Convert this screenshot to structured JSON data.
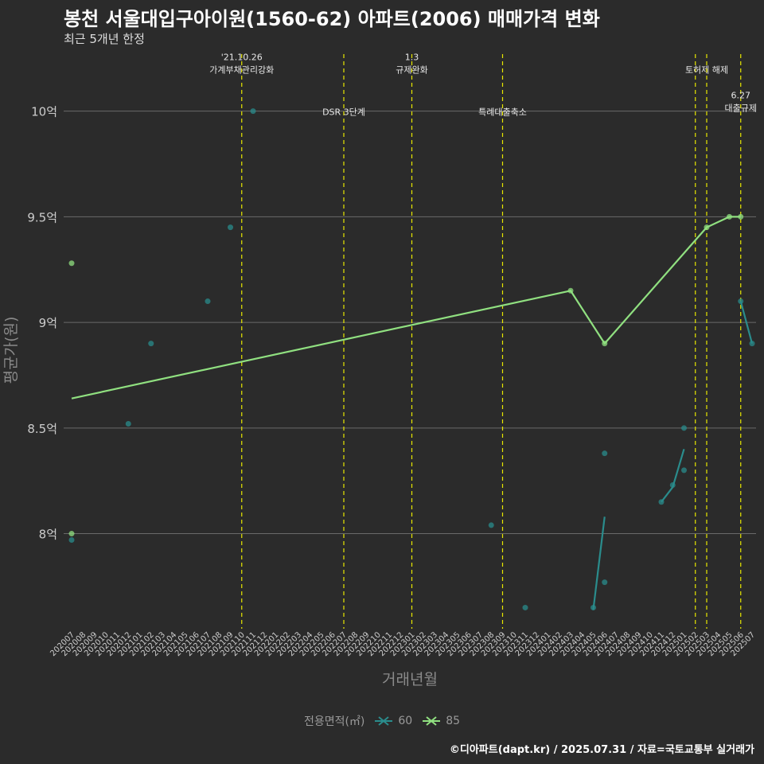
{
  "title": "봉천 서울대입구아이원(1560-62) 아파트(2006) 매매가격 변화",
  "subtitle": "최근 5개년 한정",
  "footer": "©디아파트(dapt.kr) / 2025.07.31 / 자료=국토교통부 실거래가",
  "colors": {
    "background": "#2b2b2b",
    "grid": "#6a6a6a",
    "event_line": "#e8e800",
    "series_60": "#2a8c8c",
    "series_85": "#90e080",
    "axis_text": "#cccccc",
    "axis_title": "#8a8a8a"
  },
  "chart_data": {
    "type": "line",
    "title": "봉천 서울대입구아이원(1560-62) 아파트(2006) 매매가격 변화",
    "xlabel": "거래년월",
    "ylabel": "평균가(원)",
    "ylim": [
      7.55,
      10.3
    ],
    "y_ticks": [
      {
        "value": 8.0,
        "label": "8억"
      },
      {
        "value": 8.5,
        "label": "8.5억"
      },
      {
        "value": 9.0,
        "label": "9억"
      },
      {
        "value": 9.5,
        "label": "9.5억"
      },
      {
        "value": 10.0,
        "label": "10억"
      }
    ],
    "categories": [
      "202007",
      "202008",
      "202009",
      "202010",
      "202011",
      "202012",
      "202101",
      "202102",
      "202103",
      "202104",
      "202105",
      "202106",
      "202107",
      "202108",
      "202109",
      "202110",
      "202111",
      "202112",
      "202201",
      "202202",
      "202203",
      "202204",
      "202205",
      "202206",
      "202207",
      "202208",
      "202209",
      "202210",
      "202211",
      "202212",
      "202301",
      "202302",
      "202303",
      "202304",
      "202305",
      "202306",
      "202307",
      "202308",
      "202309",
      "202310",
      "202311",
      "202312",
      "202401",
      "202402",
      "202403",
      "202404",
      "202405",
      "202406",
      "202407",
      "202408",
      "202409",
      "202410",
      "202411",
      "202412",
      "202501",
      "202502",
      "202503",
      "202504",
      "202505",
      "202506",
      "202507"
    ],
    "legend_title": "전용면적(㎡)",
    "series": [
      {
        "name": "60",
        "color": "#2a8c8c",
        "points": [
          {
            "x": "202007",
            "y": 7.97
          },
          {
            "x": "202012",
            "y": 8.52
          },
          {
            "x": "202102",
            "y": 8.9
          },
          {
            "x": "202107",
            "y": 9.1
          },
          {
            "x": "202109",
            "y": 9.45
          },
          {
            "x": "202111",
            "y": 10.0
          },
          {
            "x": "202308",
            "y": 8.04
          },
          {
            "x": "202311",
            "y": 7.65
          },
          {
            "x": "202405",
            "y": 7.65
          },
          {
            "x": "202406",
            "y": 7.77
          },
          {
            "x": "202406",
            "y": 8.38
          },
          {
            "x": "202411",
            "y": 8.15
          },
          {
            "x": "202412",
            "y": 8.23
          },
          {
            "x": "202501",
            "y": 8.3
          },
          {
            "x": "202501",
            "y": 8.5
          },
          {
            "x": "202506",
            "y": 9.1
          },
          {
            "x": "202507",
            "y": 8.9
          }
        ],
        "trend_segments": [
          [
            {
              "x": "202405",
              "y": 7.64
            },
            {
              "x": "202406",
              "y": 8.08
            }
          ],
          [
            {
              "x": "202411",
              "y": 8.15
            },
            {
              "x": "202412",
              "y": 8.22
            },
            {
              "x": "202501",
              "y": 8.4
            }
          ],
          [
            {
              "x": "202506",
              "y": 9.1
            },
            {
              "x": "202507",
              "y": 8.9
            }
          ]
        ]
      },
      {
        "name": "85",
        "color": "#90e080",
        "points": [
          {
            "x": "202007",
            "y": 9.28
          },
          {
            "x": "202007",
            "y": 8.0
          },
          {
            "x": "202403",
            "y": 9.15
          },
          {
            "x": "202406",
            "y": 8.9
          },
          {
            "x": "202503",
            "y": 9.45
          },
          {
            "x": "202505",
            "y": 9.5
          },
          {
            "x": "202506",
            "y": 9.5
          }
        ],
        "trend_segments": [
          [
            {
              "x": "202007",
              "y": 8.64
            },
            {
              "x": "202403",
              "y": 9.15
            },
            {
              "x": "202406",
              "y": 8.9
            },
            {
              "x": "202503",
              "y": 9.45
            },
            {
              "x": "202505",
              "y": 9.5
            },
            {
              "x": "202506",
              "y": 9.5
            }
          ]
        ]
      }
    ],
    "events": [
      {
        "x": "202110",
        "line1": "'21.10.26",
        "line2": "가계부채관리강화",
        "y": 10.2
      },
      {
        "x": "202207",
        "line1": "DSR 3단계",
        "line2": "",
        "y": 10.0
      },
      {
        "x": "202301",
        "line1": "1.3",
        "line2": "규제완화",
        "y": 10.2
      },
      {
        "x": "202309",
        "line1": "특례대출축소",
        "line2": "",
        "y": 10.0
      },
      {
        "x": "202502",
        "line1": "토허제 해제",
        "line2": "",
        "y": 10.2,
        "offset": 1
      },
      {
        "x": "202503",
        "line1": "",
        "line2": "",
        "y": 10.2
      },
      {
        "x": "202506",
        "line1": "6.27",
        "line2": "대출규제",
        "y": 10.02
      }
    ]
  }
}
